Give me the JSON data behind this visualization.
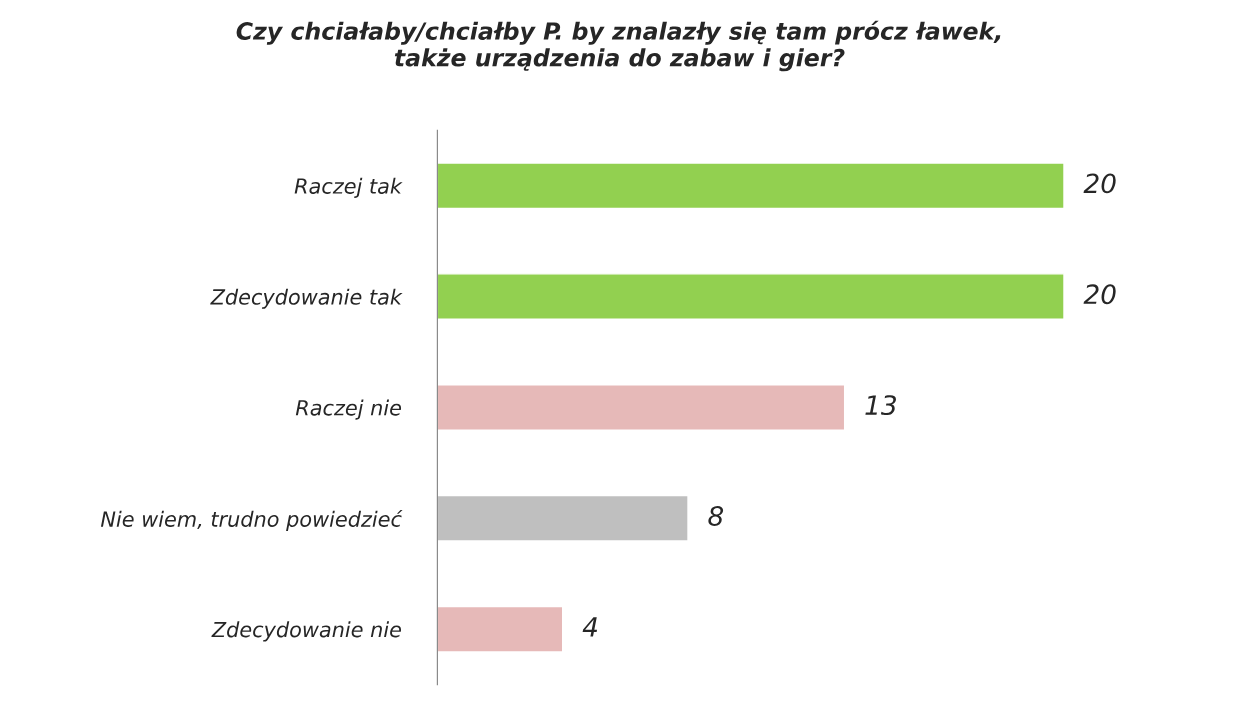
{
  "chart_data": {
    "type": "bar",
    "orientation": "horizontal",
    "title": "Czy chciałaby/chciałby P. by znalazły się tam prócz ławek,\ntakże urządzenia do zabaw i gier?",
    "categories": [
      "Raczej tak",
      "Zdecydowanie tak",
      "Raczej nie",
      "Nie wiem, trudno powiedzieć",
      "Zdecydowanie nie"
    ],
    "values": [
      20,
      20,
      13,
      8,
      4
    ],
    "colors": [
      "#92d050",
      "#92d050",
      "#e6b9b8",
      "#bfbfbf",
      "#e6b9b8"
    ],
    "data_labels": true,
    "tick_labels": "y",
    "grid": false,
    "legend": false
  }
}
